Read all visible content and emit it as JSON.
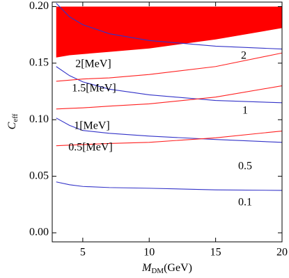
{
  "chart_data": {
    "type": "line",
    "x_label": "M",
    "x_label_sub": "DM",
    "x_label_unit": "(GeV)",
    "y_label": "C",
    "y_label_sub": "eff",
    "x": [
      3,
      4,
      5,
      7,
      10,
      15,
      20
    ],
    "region": {
      "color": "#ff0000",
      "lower": [
        0.155,
        0.157,
        0.158,
        0.16,
        0.163,
        0.171,
        0.181
      ],
      "upper": [
        0.2,
        0.2,
        0.2,
        0.2,
        0.2,
        0.2,
        0.2
      ]
    },
    "series": [
      {
        "color": "#3232c8",
        "values": [
          0.203,
          0.191,
          0.184,
          0.176,
          0.17,
          0.165,
          0.1625
        ]
      },
      {
        "color": "#3232c8",
        "values": [
          0.147,
          0.139,
          0.1335,
          0.127,
          0.122,
          0.117,
          0.115
        ]
      },
      {
        "color": "#3232c8",
        "values": [
          0.1015,
          0.095,
          0.0905,
          0.088,
          0.0855,
          0.0825,
          0.08
        ]
      },
      {
        "color": "#3232c8",
        "values": [
          0.045,
          0.0425,
          0.041,
          0.04,
          0.0394,
          0.038,
          0.0375
        ]
      },
      {
        "color": "#ff2020",
        "values": [
          0.134,
          0.135,
          0.136,
          0.137,
          0.14,
          0.147,
          0.159
        ]
      },
      {
        "color": "#ff2020",
        "values": [
          0.1095,
          0.11,
          0.1105,
          0.112,
          0.114,
          0.12,
          0.13
        ]
      },
      {
        "color": "#ff2020",
        "values": [
          0.077,
          0.0775,
          0.078,
          0.079,
          0.08,
          0.084,
          0.09
        ]
      }
    ],
    "annotations": [
      "2",
      "1",
      "0.5",
      "0.1",
      "2[MeV]",
      "1.5[MeV]",
      "1[MeV]",
      "0.5[MeV]"
    ],
    "xlim": [
      2.7,
      20
    ],
    "xticks": [
      5,
      10,
      15,
      20
    ],
    "ylim": [
      -0.008,
      0.204
    ],
    "yticks": [
      {
        "value": 0,
        "label": "0.00"
      },
      {
        "value": 0.05,
        "label": "0.05"
      },
      {
        "value": 0.1,
        "label": "0.10"
      },
      {
        "value": 0.15,
        "label": "0.15"
      },
      {
        "value": 0.2,
        "label": "0.20"
      }
    ]
  }
}
